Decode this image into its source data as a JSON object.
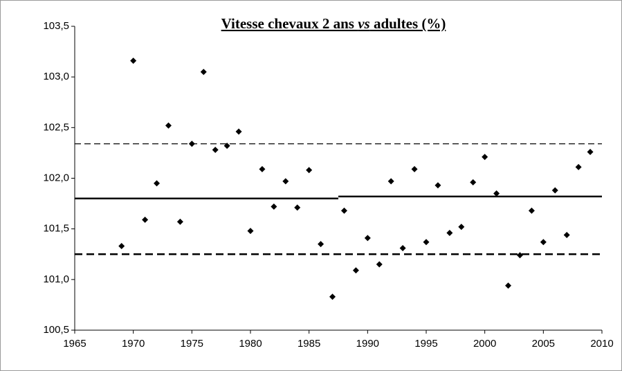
{
  "chart_data": {
    "type": "scatter",
    "title": [
      "Vitesse chevaux 2 ans ",
      "vs",
      " adultes (%)"
    ],
    "x": [
      1969,
      1970,
      1971,
      1972,
      1973,
      1974,
      1975,
      1976,
      1977,
      1978,
      1979,
      1980,
      1981,
      1982,
      1983,
      1984,
      1985,
      1986,
      1987,
      1988,
      1989,
      1990,
      1991,
      1992,
      1993,
      1994,
      1995,
      1996,
      1997,
      1998,
      1999,
      2000,
      2001,
      2002,
      2003,
      2004,
      2005,
      2006,
      2007,
      2008,
      2009
    ],
    "values": [
      101.33,
      103.16,
      101.59,
      101.95,
      102.52,
      101.57,
      102.34,
      103.05,
      102.28,
      102.32,
      102.46,
      101.48,
      102.09,
      101.72,
      101.97,
      101.71,
      102.08,
      101.35,
      100.83,
      101.68,
      101.09,
      101.41,
      101.15,
      101.97,
      101.31,
      102.09,
      101.37,
      101.93,
      101.46,
      101.52,
      101.96,
      102.21,
      101.85,
      100.94,
      101.24,
      101.68,
      101.37,
      101.88,
      101.44,
      102.11,
      102.26
    ],
    "color": "#000000",
    "reference_lines": [
      {
        "value": 101.8,
        "x": [
          1965,
          1987.5
        ],
        "dash": "solid"
      },
      {
        "value": 101.82,
        "x": [
          1987.5,
          2010
        ],
        "dash": "solid"
      },
      {
        "value": 102.34,
        "x": [
          1965,
          2010
        ],
        "dash": "thin"
      },
      {
        "value": 101.25,
        "x": [
          1965,
          2010
        ],
        "dash": "thick"
      }
    ],
    "xlim": [
      1965,
      2010
    ],
    "xticks": [
      1965,
      1970,
      1975,
      1980,
      1985,
      1990,
      1995,
      2000,
      2005,
      2010
    ],
    "ylim": [
      100.5,
      103.5
    ],
    "yticks": [
      {
        "value": 100.5,
        "label": "100,5"
      },
      {
        "value": 101.0,
        "label": "101,0"
      },
      {
        "value": 101.5,
        "label": "101,5"
      },
      {
        "value": 102.0,
        "label": "102,0"
      },
      {
        "value": 102.5,
        "label": "102,5"
      },
      {
        "value": 103.0,
        "label": "103,0"
      },
      {
        "value": 103.5,
        "label": "103,5"
      }
    ],
    "grid": false
  }
}
